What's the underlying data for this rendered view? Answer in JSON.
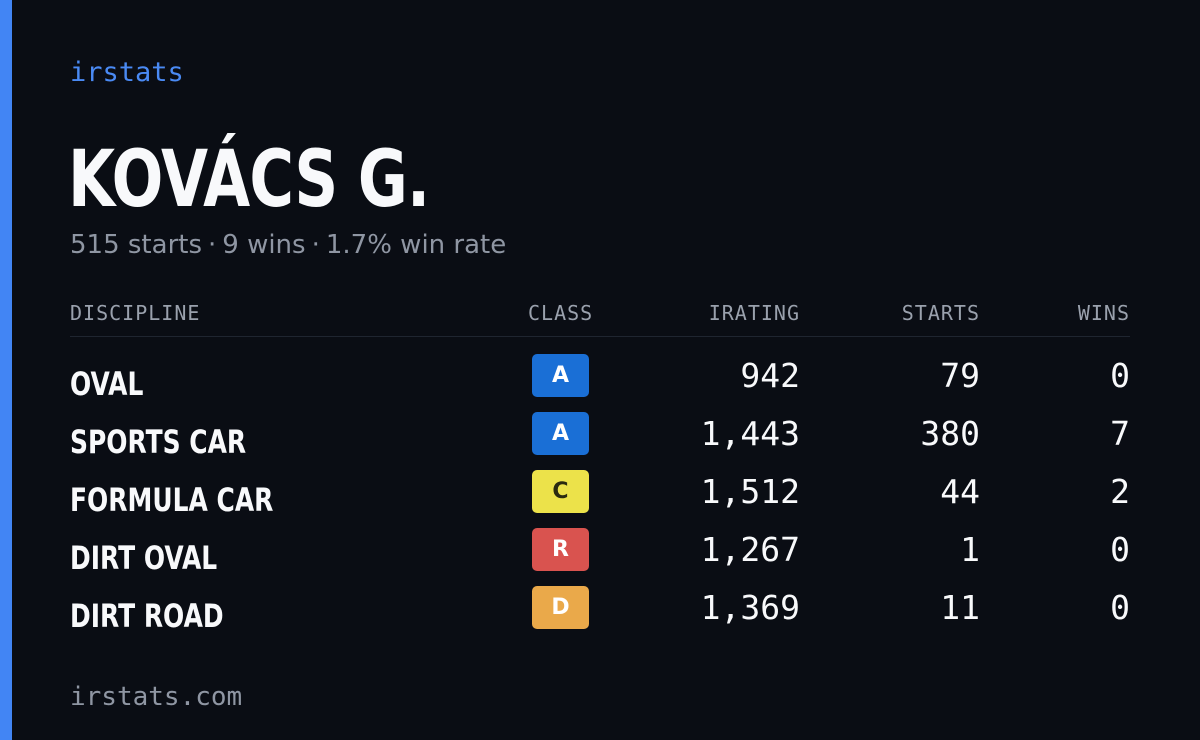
{
  "brand": "irstats",
  "player": {
    "name": "KOVÁCS G.",
    "starts_text": "515 starts",
    "wins_text": "9 wins",
    "win_rate_text": "1.7% win rate",
    "separator": "·"
  },
  "table": {
    "headers": {
      "discipline": "DISCIPLINE",
      "class": "CLASS",
      "irating": "IRATING",
      "starts": "STARTS",
      "wins": "WINS"
    },
    "rows": [
      {
        "discipline": "OVAL",
        "class": "A",
        "class_color": "#1a6fd6",
        "irating": "942",
        "starts": "79",
        "wins": "0"
      },
      {
        "discipline": "SPORTS CAR",
        "class": "A",
        "class_color": "#1a6fd6",
        "irating": "1,443",
        "starts": "380",
        "wins": "7"
      },
      {
        "discipline": "FORMULA CAR",
        "class": "C",
        "class_color": "#ece24a",
        "irating": "1,512",
        "starts": "44",
        "wins": "2"
      },
      {
        "discipline": "DIRT OVAL",
        "class": "R",
        "class_color": "#d9534f",
        "irating": "1,267",
        "starts": "1",
        "wins": "0"
      },
      {
        "discipline": "DIRT ROAD",
        "class": "D",
        "class_color": "#eaa94a",
        "irating": "1,369",
        "starts": "11",
        "wins": "0"
      }
    ]
  },
  "footer": "irstats.com",
  "colors": {
    "accent": "#4285f4",
    "background": "#0a0d14"
  }
}
